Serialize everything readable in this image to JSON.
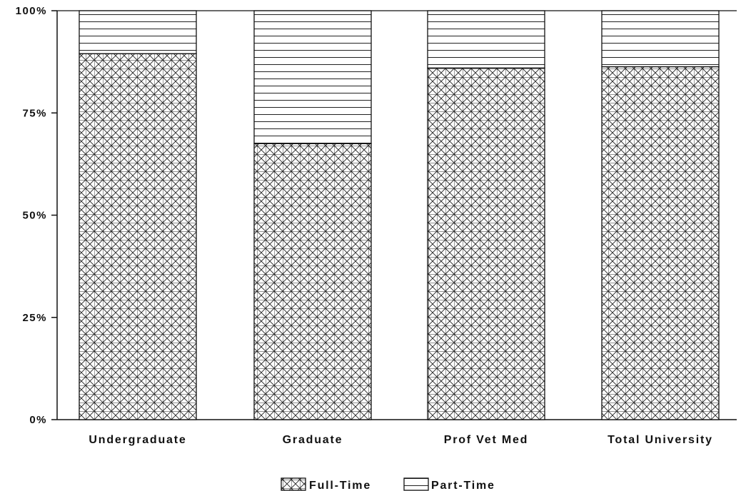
{
  "chart_data": {
    "type": "bar",
    "stacked": true,
    "percent": true,
    "categories": [
      "Undergraduate",
      "Graduate",
      "Prof Vet Med",
      "Total University"
    ],
    "series": [
      {
        "name": "Full-Time",
        "values": [
          89.5,
          67.5,
          86,
          86.3
        ],
        "pattern": "crosshatch-x"
      },
      {
        "name": "Part-Time",
        "values": [
          10.5,
          32.5,
          14,
          13.7
        ],
        "pattern": "horizontal-lines"
      }
    ],
    "ylim": [
      0,
      100
    ],
    "yticks": [
      0,
      25,
      50,
      75,
      100
    ],
    "ytick_labels": [
      "0%",
      "25%",
      "50%",
      "75%",
      "100%"
    ],
    "xlabel": "",
    "ylabel": "",
    "title": "",
    "legend": {
      "position": "bottom-center",
      "items": [
        "Full-Time",
        "Part-Time"
      ]
    },
    "colors": {
      "line": "#111111",
      "background": "#ffffff"
    }
  }
}
